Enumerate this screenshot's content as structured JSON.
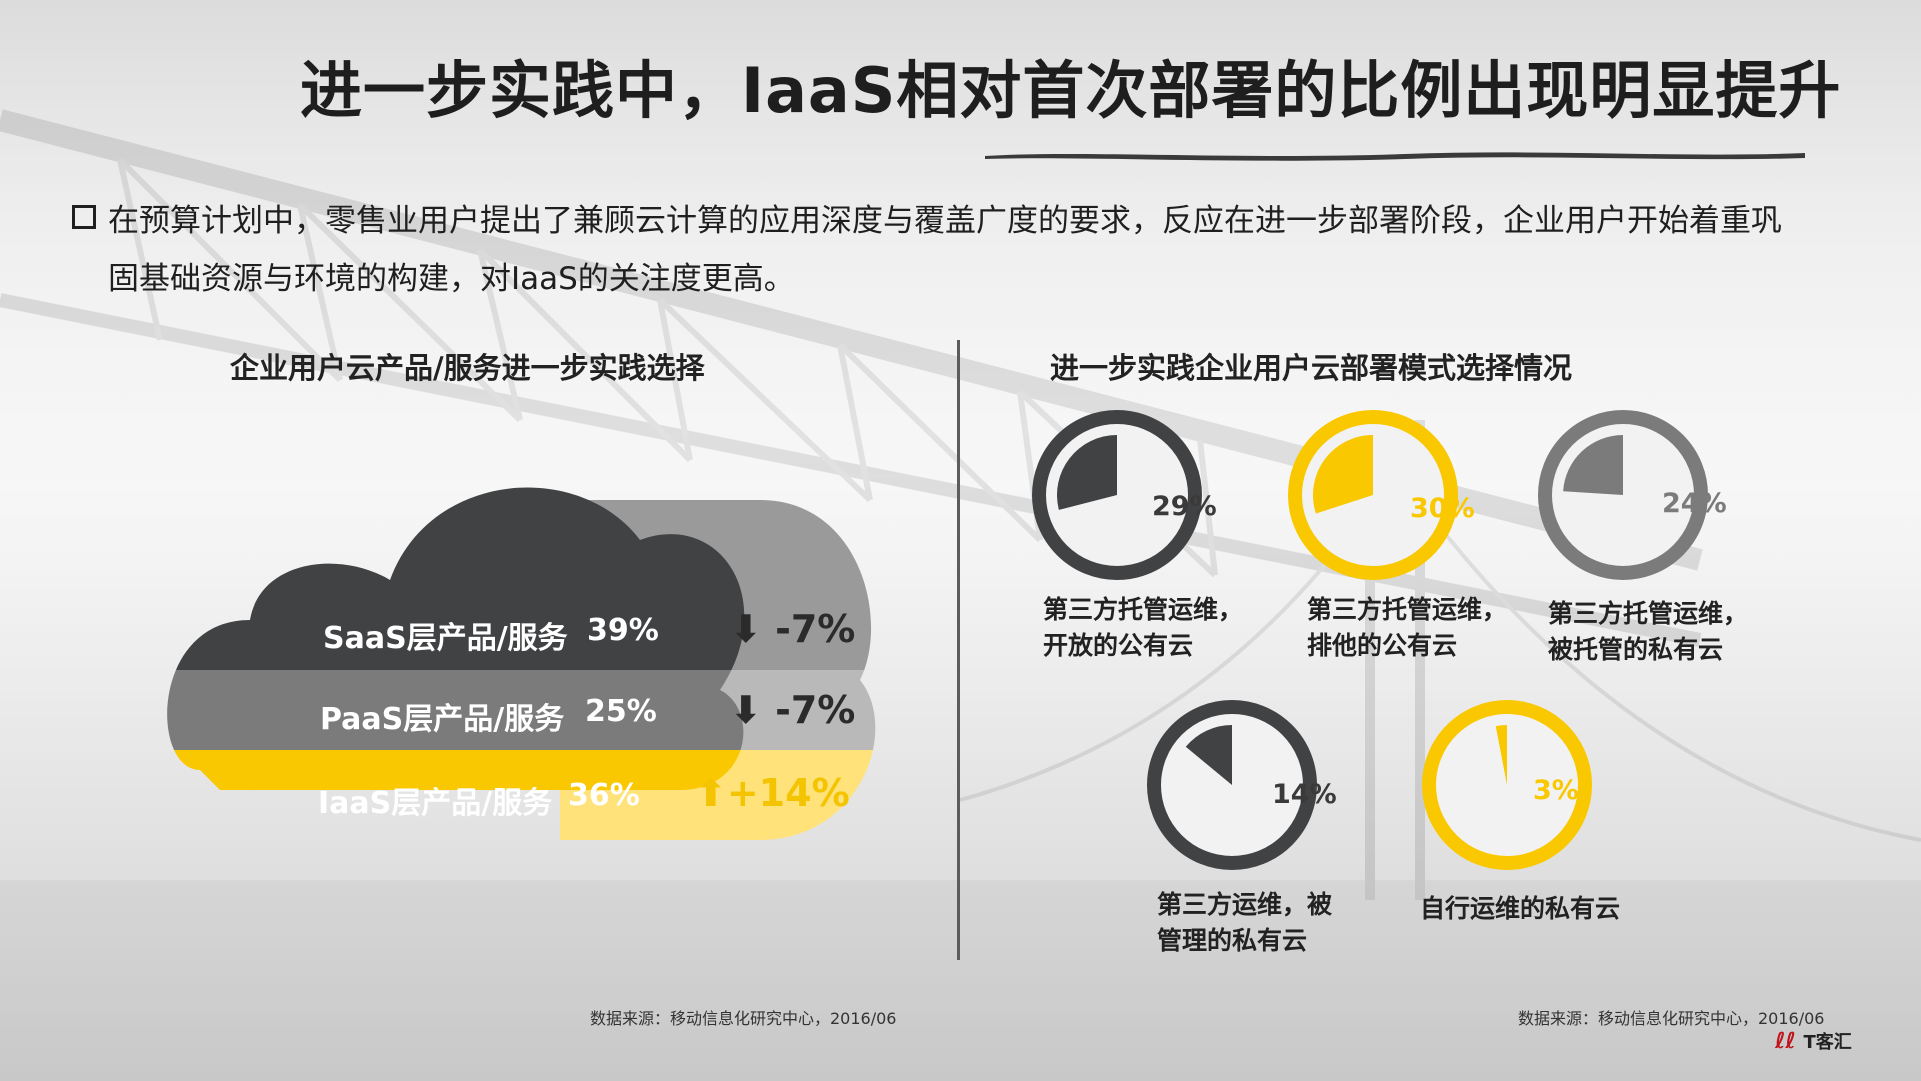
{
  "title": "进一步实践中，IaaS相对首次部署的比例出现明显提升",
  "bullet": {
    "line1": "在预算计划中，零售业用户提出了兼顾云计算的应用深度与覆盖广度的要求，反应在进一步部署阶段，企业用户开始着重巩",
    "line2": "固基础资源与环境的构建，对IaaS的关注度更高。"
  },
  "left_chart_title": "企业用户云产品/服务进一步实践选择",
  "right_chart_title": "进一步实践企业用户云部署模式选择情况",
  "source_left": "数据来源：移动信息化研究中心，2016/06",
  "source_right": "数据来源：移动信息化研究中心，2016/06",
  "logo": "T客汇",
  "colors": {
    "dark": "#414244",
    "mid": "#7b7b7b",
    "yellow": "#f9c800",
    "light": "#eeeeee"
  },
  "chart_data": [
    {
      "type": "bar",
      "title": "企业用户云产品/服务进一步实践选择",
      "categories": [
        "SaaS层产品/服务",
        "PaaS层产品/服务",
        "IaaS层产品/服务"
      ],
      "values": [
        39,
        25,
        36
      ],
      "value_labels": [
        "39%",
        "25%",
        "36%"
      ],
      "change_labels": [
        "-7%",
        "-7%",
        "+14%"
      ],
      "change_direction": [
        "down",
        "down",
        "up"
      ]
    },
    {
      "type": "pie",
      "title": "进一步实践企业用户云部署模式选择情况",
      "slices": [
        {
          "label_line1": "第三方托管运维，",
          "label_line2": "开放的公有云",
          "value": 29,
          "pct_label": "29%",
          "color": "#414244"
        },
        {
          "label_line1": "第三方托管运维，",
          "label_line2": "排他的公有云",
          "value": 30,
          "pct_label": "30%",
          "color": "#f9c800"
        },
        {
          "label_line1": "第三方托管运维，",
          "label_line2": "被托管的私有云",
          "value": 24,
          "pct_label": "24%",
          "color": "#7b7b7b"
        },
        {
          "label_line1": "第三方运维，被",
          "label_line2": "管理的私有云",
          "value": 14,
          "pct_label": "14%",
          "color": "#414244"
        },
        {
          "label_line1": "自行运维的私有云",
          "label_line2": "",
          "value": 3,
          "pct_label": "3%",
          "color": "#f9c800"
        }
      ]
    }
  ]
}
